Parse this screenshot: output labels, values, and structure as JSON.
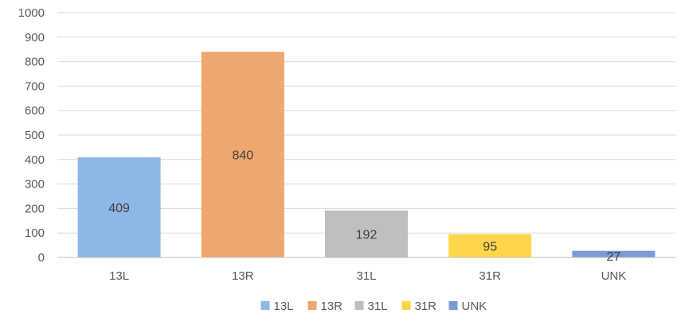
{
  "chart_data": {
    "type": "bar",
    "categories": [
      "13L",
      "13R",
      "31L",
      "31R",
      "UNK"
    ],
    "values": [
      409,
      840,
      192,
      95,
      27
    ],
    "colors": [
      "#8db8e3",
      "#f0a66f",
      "#bfbfbf",
      "#ffd54a",
      "#7b9ad6"
    ],
    "title": "",
    "xlabel": "",
    "ylabel": "",
    "ylim": [
      0,
      1000
    ],
    "yticks": [
      0,
      100,
      200,
      300,
      400,
      500,
      600,
      700,
      800,
      900,
      1000
    ],
    "grid": true,
    "legend": {
      "placement": "bottom",
      "entries": [
        "13L",
        "13R",
        "31L",
        "31R",
        "UNK"
      ]
    }
  }
}
